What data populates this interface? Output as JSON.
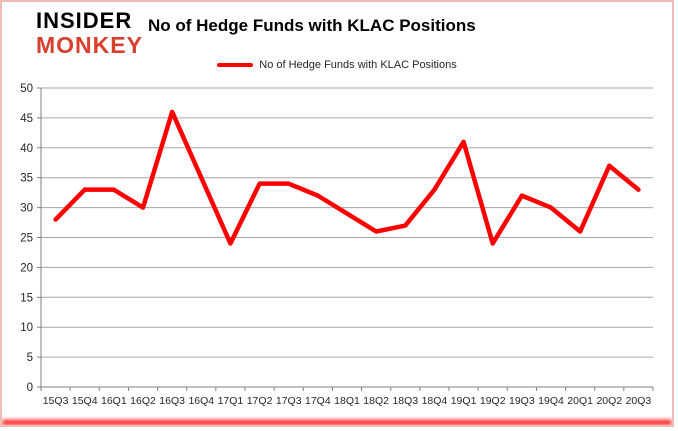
{
  "brand": {
    "line1": "INSIDER",
    "line2": "MONKEY"
  },
  "header": {
    "title": "No of Hedge Funds with KLAC Positions"
  },
  "legend": {
    "label": "No of Hedge Funds with KLAC Positions"
  },
  "colors": {
    "series": "#ff0000",
    "grid": "#a6a6a6",
    "axis": "#808080",
    "tick_label": "#262626",
    "frame_border": "#f0bdb6",
    "bottom_glow": "#ff0000",
    "logo_black": "#000000",
    "logo_red": "#d8402c"
  },
  "chart_data": {
    "type": "line",
    "title": "No of Hedge Funds with KLAC Positions",
    "categories": [
      "15Q3",
      "15Q4",
      "16Q1",
      "16Q2",
      "16Q3",
      "16Q4",
      "17Q1",
      "17Q2",
      "17Q3",
      "17Q4",
      "18Q1",
      "18Q2",
      "18Q3",
      "18Q4",
      "19Q1",
      "19Q2",
      "19Q3",
      "19Q4",
      "20Q1",
      "20Q2",
      "20Q3"
    ],
    "series": [
      {
        "name": "No of Hedge Funds with KLAC Positions",
        "color": "#ff0000",
        "values": [
          28,
          33,
          33,
          30,
          46,
          35,
          24,
          34,
          34,
          32,
          29,
          26,
          27,
          33,
          41,
          24,
          32,
          30,
          26,
          37,
          33
        ]
      }
    ],
    "ylim": [
      0,
      50
    ],
    "ytick_step": 5,
    "grid": "horizontal",
    "legend_position": "top"
  }
}
